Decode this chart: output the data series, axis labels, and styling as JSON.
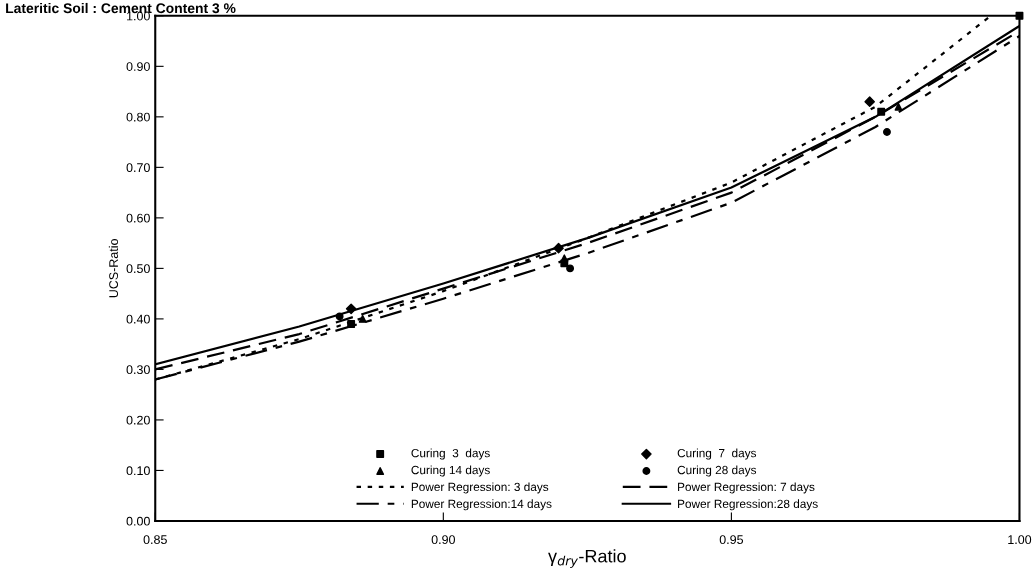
{
  "chart_data": {
    "type": "scatter",
    "title": "Lateritic Soil : Cement Content 3 %",
    "xlabel": "γ$_{dry}$-Ratio",
    "ylabel": "UCS-Ratio",
    "xlim": [
      0.85,
      1.0
    ],
    "xticks": [
      {
        "value": 0.85,
        "label": "0.85"
      },
      {
        "value": 0.9,
        "label": "0.90"
      },
      {
        "value": 0.95,
        "label": "0.95"
      },
      {
        "value": 1.0,
        "label": "1.00"
      }
    ],
    "ylim": [
      0,
      1.0
    ],
    "yticks": [
      {
        "value": 0,
        "label": "0.00"
      },
      {
        "value": 0.1,
        "label": "0.10"
      },
      {
        "value": 0.2,
        "label": "0.20"
      },
      {
        "value": 0.3,
        "label": "0.30"
      },
      {
        "value": 0.4,
        "label": "0.40"
      },
      {
        "value": 0.5,
        "label": "0.50"
      },
      {
        "value": 0.6,
        "label": "0.60"
      },
      {
        "value": 0.7,
        "label": "0.70"
      },
      {
        "value": 0.8,
        "label": "0.80"
      },
      {
        "value": 0.9,
        "label": "0.90"
      },
      {
        "value": 1.0,
        "label": "1.00"
      }
    ],
    "grid": false,
    "legend": "bottom",
    "series": [
      {
        "name": "Curing  3  days",
        "marker": "square",
        "color": "#000000",
        "x": [
          0.884,
          0.921,
          0.976,
          1.0
        ],
        "values": [
          0.39,
          0.51,
          0.81,
          1.0
        ]
      },
      {
        "name": "Curing  7  days",
        "marker": "diamond",
        "color": "#000000",
        "x": [
          0.884,
          0.92,
          0.974
        ],
        "values": [
          0.42,
          0.54,
          0.83
        ]
      },
      {
        "name": "Curing 14 days",
        "marker": "triangle",
        "color": "#000000",
        "x": [
          0.886,
          0.921,
          0.979
        ],
        "values": [
          0.4,
          0.52,
          0.82
        ]
      },
      {
        "name": "Curing 28 days",
        "marker": "circle",
        "color": "#000000",
        "x": [
          0.882,
          0.922,
          0.977
        ],
        "values": [
          0.405,
          0.5,
          0.77
        ]
      },
      {
        "name": "Power Regression: 3 days",
        "type": "line",
        "line_style": "dotted",
        "color": "#000000",
        "x": [
          0.85,
          0.875,
          0.9,
          0.925,
          0.95,
          0.975,
          0.995
        ],
        "values": [
          0.28,
          0.36,
          0.455,
          0.56,
          0.67,
          0.82,
          1.0
        ]
      },
      {
        "name": "Power Regression: 7 days",
        "type": "line",
        "line_style": "dashed",
        "color": "#000000",
        "x": [
          0.85,
          0.875,
          0.9,
          0.925,
          0.95,
          0.975,
          1.0
        ],
        "values": [
          0.3,
          0.37,
          0.46,
          0.55,
          0.65,
          0.8,
          0.97
        ]
      },
      {
        "name": "Power Regression:14 days",
        "type": "line",
        "line_style": "dashdot",
        "color": "#000000",
        "x": [
          0.85,
          0.875,
          0.9,
          0.925,
          0.95,
          0.975,
          1.0
        ],
        "values": [
          0.28,
          0.355,
          0.44,
          0.53,
          0.63,
          0.78,
          0.96
        ]
      },
      {
        "name": "Power Regression:28 days",
        "type": "line",
        "line_style": "solid",
        "color": "#000000",
        "x": [
          0.85,
          0.875,
          0.9,
          0.925,
          0.95,
          0.975,
          1.0
        ],
        "values": [
          0.31,
          0.385,
          0.47,
          0.56,
          0.66,
          0.8,
          0.98
        ]
      }
    ]
  }
}
